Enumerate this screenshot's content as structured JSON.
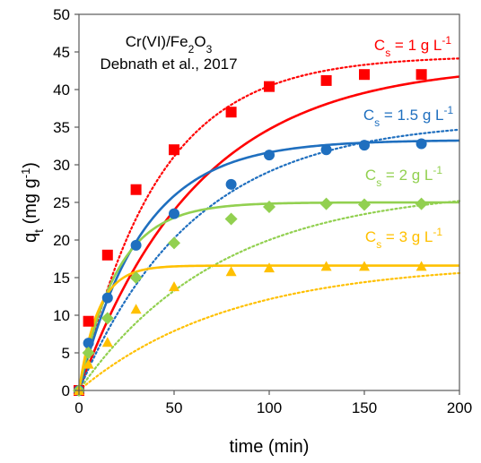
{
  "chart_data": {
    "type": "scatter",
    "xlabel": "time (min)",
    "ylabel_main": "q",
    "ylabel_sub": "t",
    "ylabel_unit_pre": " (mg g",
    "ylabel_unit_sup": "-1",
    "ylabel_unit_post": ")",
    "xlim": [
      0,
      200
    ],
    "ylim": [
      0,
      50
    ],
    "xticks": [
      0,
      50,
      100,
      150,
      200
    ],
    "yticks": [
      0,
      5,
      10,
      15,
      20,
      25,
      30,
      35,
      40,
      45,
      50
    ],
    "grid": false,
    "annotation": {
      "line1_pre": "Cr(VI)/Fe",
      "line1_sub1": "2",
      "line1_mid": "O",
      "line1_sub2": "3",
      "line2": "Debnath et al., 2017"
    },
    "series": [
      {
        "label_main": "C",
        "label_sub": "s",
        "label_mid": " = 1 g L",
        "label_sup": "-1",
        "color": "#FF0000",
        "marker": "square",
        "x": [
          0,
          5,
          15,
          30,
          50,
          80,
          100,
          130,
          150,
          180
        ],
        "y": [
          0,
          9.2,
          18.0,
          26.7,
          32.0,
          37.0,
          40.4,
          41.2,
          42.0,
          42.0
        ],
        "solid_fit": {
          "qe": 43.5,
          "k": 0.016
        },
        "dotted_fit": {
          "qe": 44.5,
          "k": 0.024
        }
      },
      {
        "label_main": "C",
        "label_sub": "s",
        "label_mid": " = 1.5 g L",
        "label_sup": "-1",
        "color": "#1F6FBF",
        "marker": "circle",
        "x": [
          0,
          5,
          15,
          30,
          50,
          80,
          100,
          130,
          150,
          180
        ],
        "y": [
          0,
          6.3,
          12.3,
          19.3,
          23.5,
          27.4,
          31.3,
          32.0,
          32.6,
          32.8
        ],
        "solid_fit": {
          "qe": 33.3,
          "k": 0.03
        },
        "dotted_fit": {
          "qe": 36.0,
          "k": 0.0165
        }
      },
      {
        "label_main": "C",
        "label_sub": "s",
        "label_mid": " = 2 g L",
        "label_sup": "-1",
        "color": "#92D050",
        "marker": "diamond",
        "x": [
          0,
          5,
          15,
          30,
          50,
          80,
          100,
          130,
          150,
          180
        ],
        "y": [
          0,
          5.0,
          9.6,
          15.0,
          19.6,
          22.8,
          24.4,
          24.8,
          24.7,
          24.8
        ],
        "solid_fit": {
          "qe": 25.0,
          "k": 0.05
        },
        "dotted_fit": {
          "qe": 27.0,
          "k": 0.0135
        }
      },
      {
        "label_main": "C",
        "label_sub": "s",
        "label_mid": " = 3 g L",
        "label_sup": "-1",
        "color": "#FFC000",
        "marker": "triangle",
        "x": [
          0,
          5,
          15,
          30,
          50,
          80,
          100,
          130,
          150,
          180
        ],
        "y": [
          0,
          3.5,
          6.4,
          10.8,
          13.8,
          15.8,
          16.3,
          16.5,
          16.5,
          16.5
        ],
        "solid_fit": {
          "qe": 16.6,
          "k": 0.1
        },
        "dotted_fit": {
          "qe": 17.0,
          "k": 0.0125
        }
      }
    ]
  }
}
